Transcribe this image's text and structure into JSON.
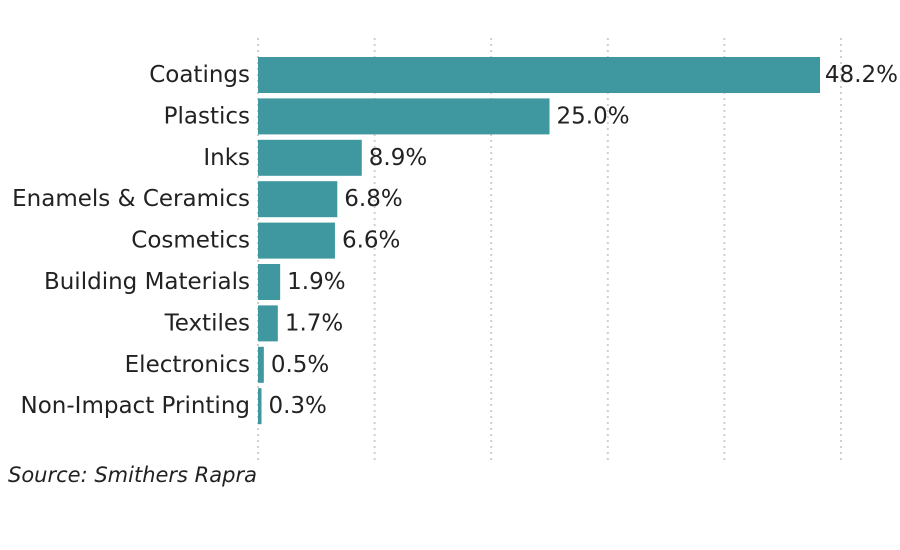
{
  "chart_data": {
    "type": "bar",
    "orientation": "horizontal",
    "categories": [
      "Coatings",
      "Plastics",
      "Inks",
      "Enamels & Ceramics",
      "Cosmetics",
      "Building Materials",
      "Textiles",
      "Electronics",
      "Non-Impact Printing"
    ],
    "values": [
      48.2,
      25.0,
      8.9,
      6.8,
      6.6,
      1.9,
      1.7,
      0.5,
      0.3
    ],
    "value_labels": [
      "48.2%",
      "25.0%",
      "8.9%",
      "6.8%",
      "6.6%",
      "1.9%",
      "1.7%",
      "0.5%",
      "0.3%"
    ],
    "title": "",
    "xlabel": "",
    "ylabel": "",
    "xlim": [
      0,
      50
    ],
    "grid": true,
    "grid_style": "dotted-vertical",
    "legend": "none",
    "colors": {
      "bar": "#3f97a0",
      "grid": "#cfcfcf",
      "text": "#222222"
    }
  },
  "footnote": "Source: Smithers Rapra"
}
